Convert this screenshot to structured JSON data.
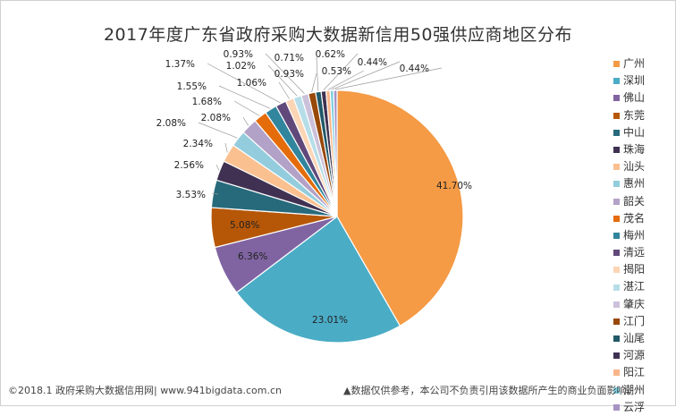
{
  "chart_data": {
    "type": "pie",
    "title": "2017年度广东省政府采购大数据新信用50强供应商地区分布",
    "legend_position": "right",
    "slices": [
      {
        "name": "广州",
        "value": 41.7,
        "label": "41.70%",
        "color": "#F59A45"
      },
      {
        "name": "深圳",
        "value": 23.01,
        "label": "23.01%",
        "color": "#4BACC6"
      },
      {
        "name": "佛山",
        "value": 6.36,
        "label": "6.36%",
        "color": "#8064A2"
      },
      {
        "name": "东莞",
        "value": 5.08,
        "label": "5.08%",
        "color": "#B65708"
      },
      {
        "name": "中山",
        "value": 3.53,
        "label": "3.53%",
        "color": "#276A7C"
      },
      {
        "name": "珠海",
        "value": 2.56,
        "label": "2.56%",
        "color": "#403152"
      },
      {
        "name": "汕头",
        "value": 2.34,
        "label": "2.34%",
        "color": "#FAC090"
      },
      {
        "name": "惠州",
        "value": 2.08,
        "label": "2.08%",
        "color": "#93CDDD"
      },
      {
        "name": "韶关",
        "value": 2.08,
        "label": "2.08%",
        "color": "#B3A2C7"
      },
      {
        "name": "茂名",
        "value": 1.68,
        "label": "1.68%",
        "color": "#E46C0A"
      },
      {
        "name": "梅州",
        "value": 1.55,
        "label": "1.55%",
        "color": "#31859C"
      },
      {
        "name": "清远",
        "value": 1.37,
        "label": "1.37%",
        "color": "#60497A"
      },
      {
        "name": "揭阳",
        "value": 1.06,
        "label": "1.06%",
        "color": "#FCD5B5"
      },
      {
        "name": "湛江",
        "value": 1.02,
        "label": "1.02%",
        "color": "#B7DEE8"
      },
      {
        "name": "肇庆",
        "value": 0.93,
        "label": "0.93%",
        "color": "#CCC1DA"
      },
      {
        "name": "江门",
        "value": 0.93,
        "label": "0.93%",
        "color": "#984807"
      },
      {
        "name": "汕尾",
        "value": 0.71,
        "label": "0.71%",
        "color": "#215968"
      },
      {
        "name": "河源",
        "value": 0.62,
        "label": "0.62%",
        "color": "#3F3151"
      },
      {
        "name": "阳江",
        "value": 0.53,
        "label": "0.53%",
        "color": "#F9B58A"
      },
      {
        "name": "潮州",
        "value": 0.44,
        "label": "0.44%",
        "color": "#7ECFDF"
      },
      {
        "name": "云浮",
        "value": 0.44,
        "label": "0.44%",
        "color": "#A792C4"
      }
    ]
  },
  "footer": {
    "source": "©2018.1 政府采购大数据信用网| www.941bigdata.com.cn",
    "disclaimer": "▲数据仅供参考，本公司不负责引用该数据所产生的商业负面影响。"
  }
}
